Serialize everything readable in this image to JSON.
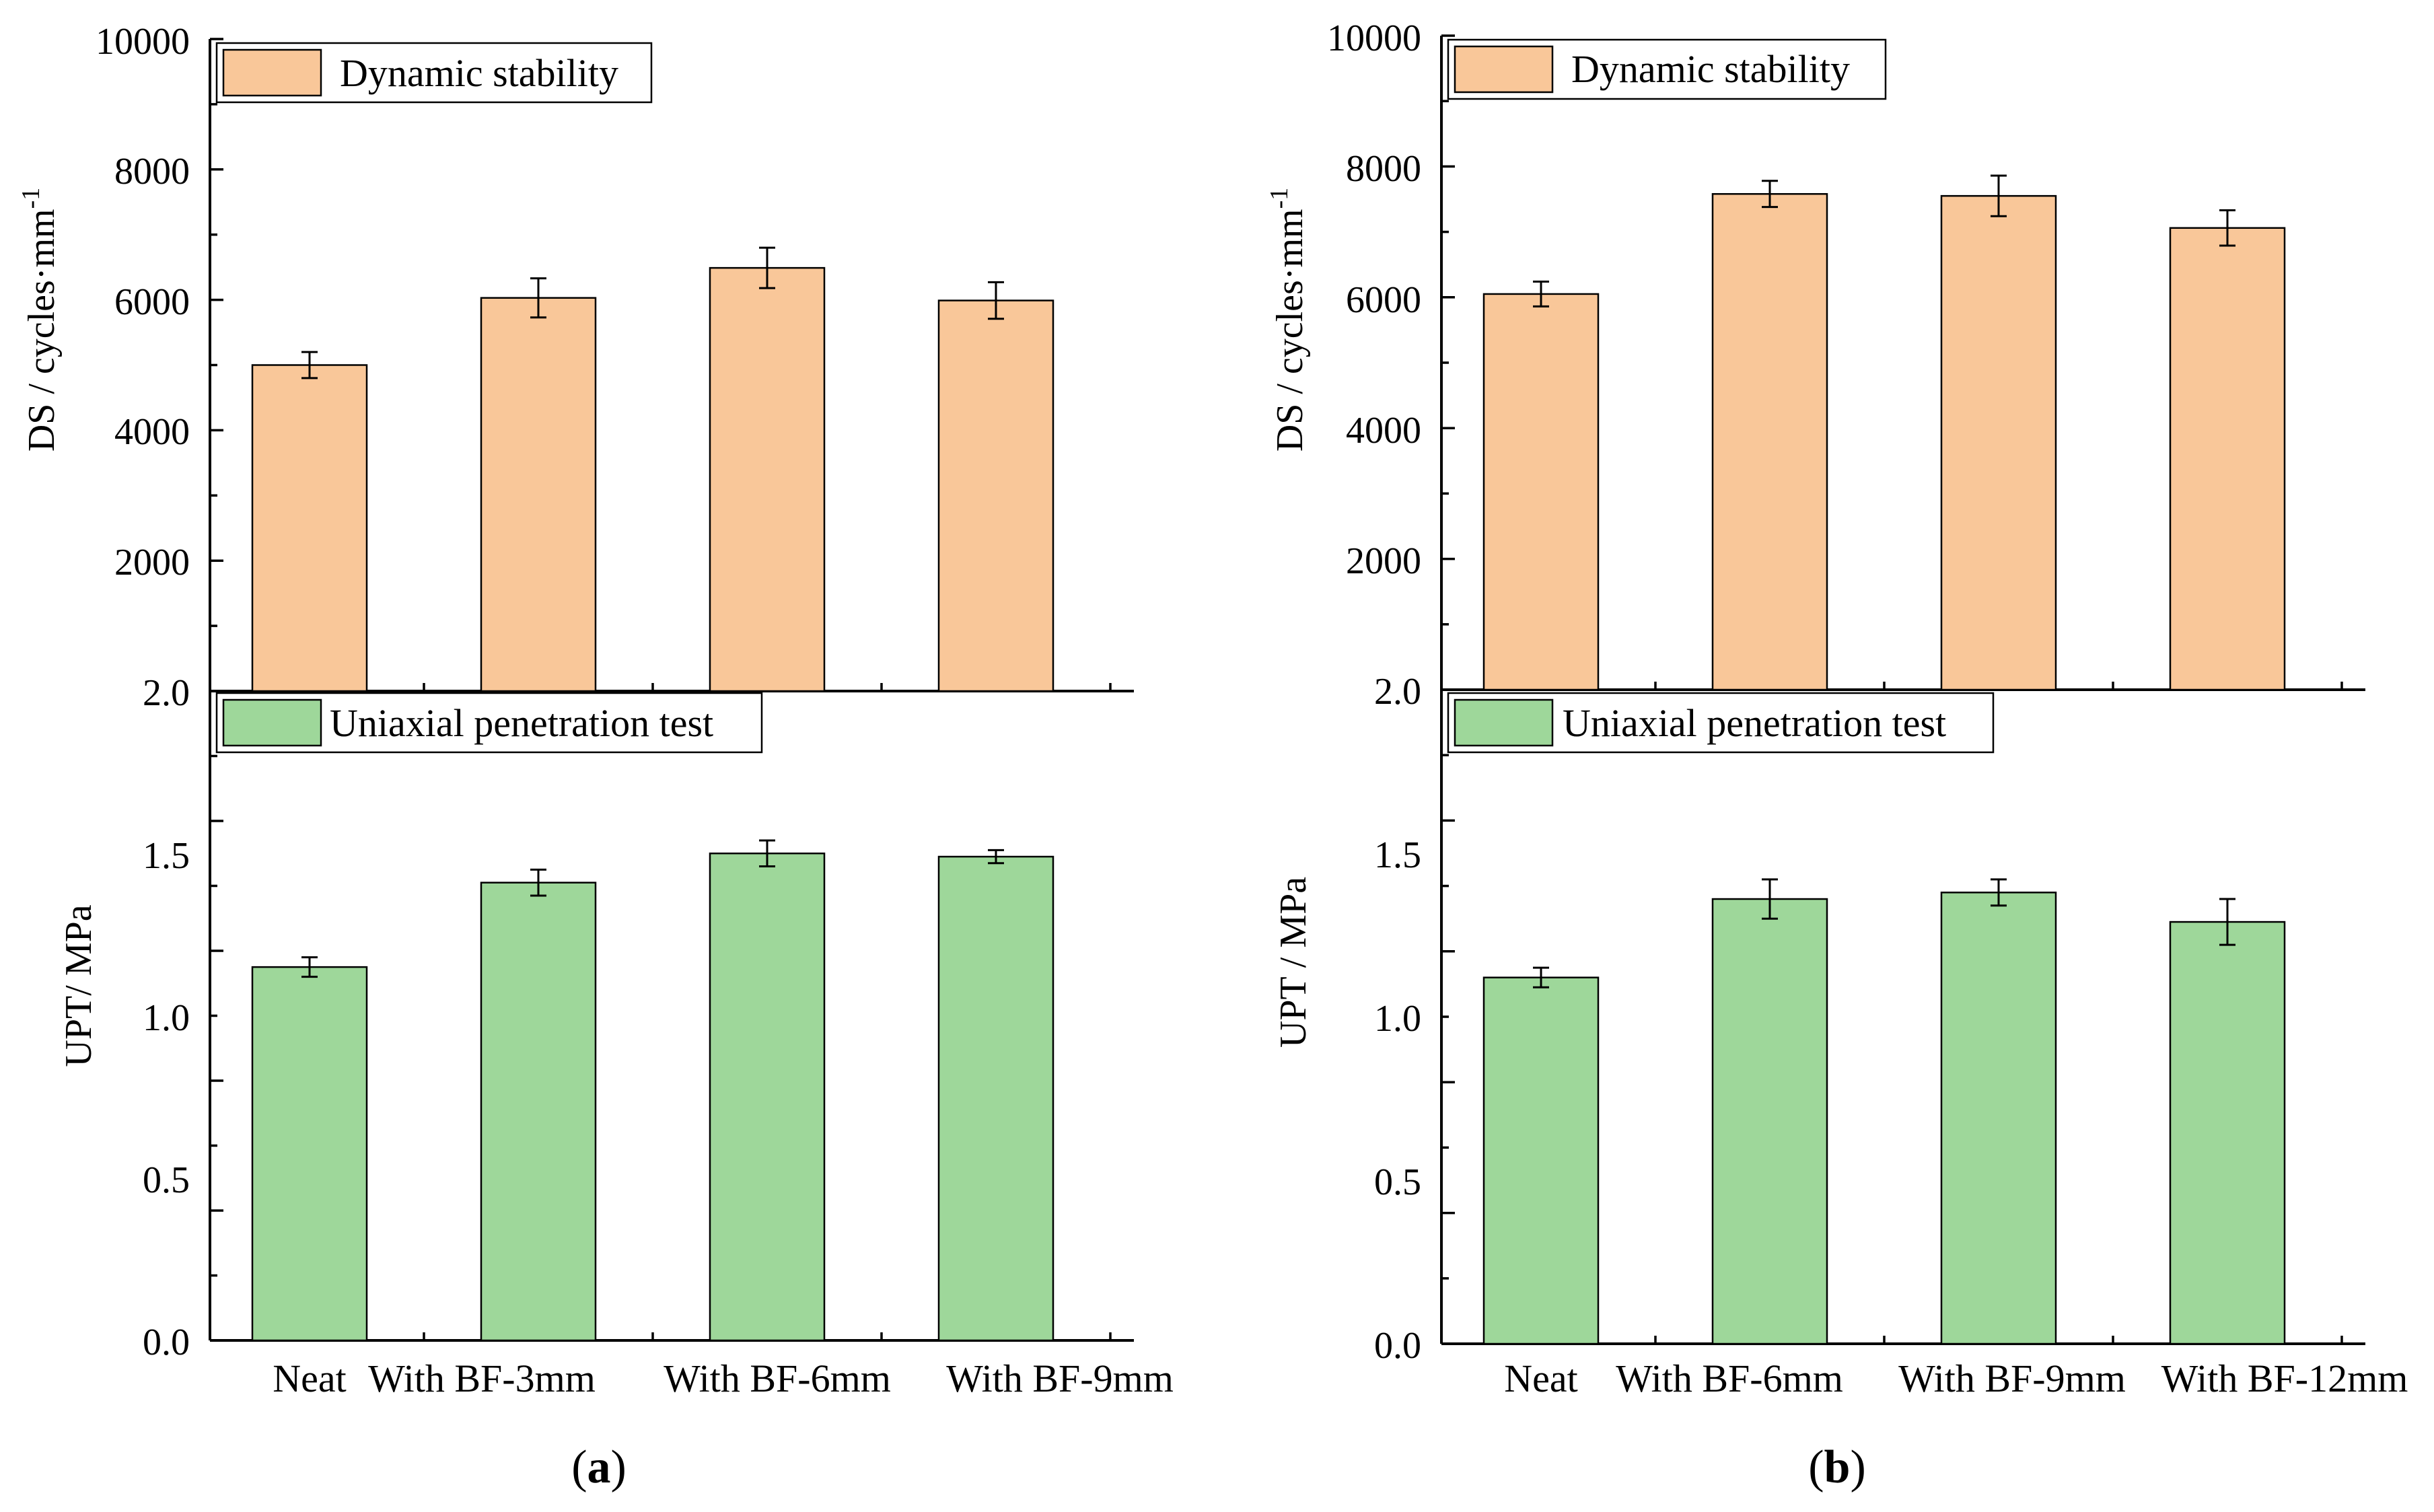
{
  "colors": {
    "ds_bar": "#F9C799",
    "upt_bar": "#9ED79A",
    "axis": "#000000"
  },
  "chart_data": [
    {
      "type": "bar",
      "panel_label": "(a)",
      "panel_letter": "a",
      "categories": [
        "Neat",
        "With BF-3mm",
        "With BF-6mm",
        "With BF-9mm"
      ],
      "top": {
        "ylabel_main": "DS / cycles·mm",
        "ylabel_sup": "-1",
        "ylim": [
          0,
          10000
        ],
        "ticks": [
          "2000",
          "4000",
          "6000",
          "8000",
          "10000"
        ],
        "legend": "Dynamic stability",
        "values": [
          5000,
          6030,
          6490,
          5990
        ],
        "errors": [
          200,
          300,
          310,
          280
        ]
      },
      "bottom": {
        "ylabel": "UPT/ MPa",
        "ylim": [
          0,
          2.0
        ],
        "ticks": [
          "0.0",
          "0.5",
          "1.0",
          "1.5",
          "2.0"
        ],
        "legend": "Uniaxial penetration test",
        "values": [
          1.15,
          1.41,
          1.5,
          1.49
        ],
        "errors": [
          0.03,
          0.04,
          0.04,
          0.02
        ]
      }
    },
    {
      "type": "bar",
      "panel_label": "(b)",
      "panel_letter": "b",
      "categories": [
        "Neat",
        "With BF-6mm",
        "With BF-9mm",
        "With BF-12mm"
      ],
      "top": {
        "ylabel_main": "DS / cycles·mm",
        "ylabel_sup": "-1",
        "ylim": [
          0,
          10000
        ],
        "ticks": [
          "2000",
          "4000",
          "6000",
          "8000",
          "10000"
        ],
        "legend": "Dynamic stability",
        "values": [
          6050,
          7580,
          7550,
          7060
        ],
        "errors": [
          190,
          200,
          310,
          270
        ]
      },
      "bottom": {
        "ylabel": "UPT / MPa",
        "ylim": [
          0,
          2.0
        ],
        "ticks": [
          "0.0",
          "0.5",
          "1.0",
          "1.5",
          "2.0"
        ],
        "legend": "Uniaxial penetration test",
        "values": [
          1.12,
          1.36,
          1.38,
          1.29
        ],
        "errors": [
          0.03,
          0.06,
          0.04,
          0.07
        ]
      }
    }
  ]
}
